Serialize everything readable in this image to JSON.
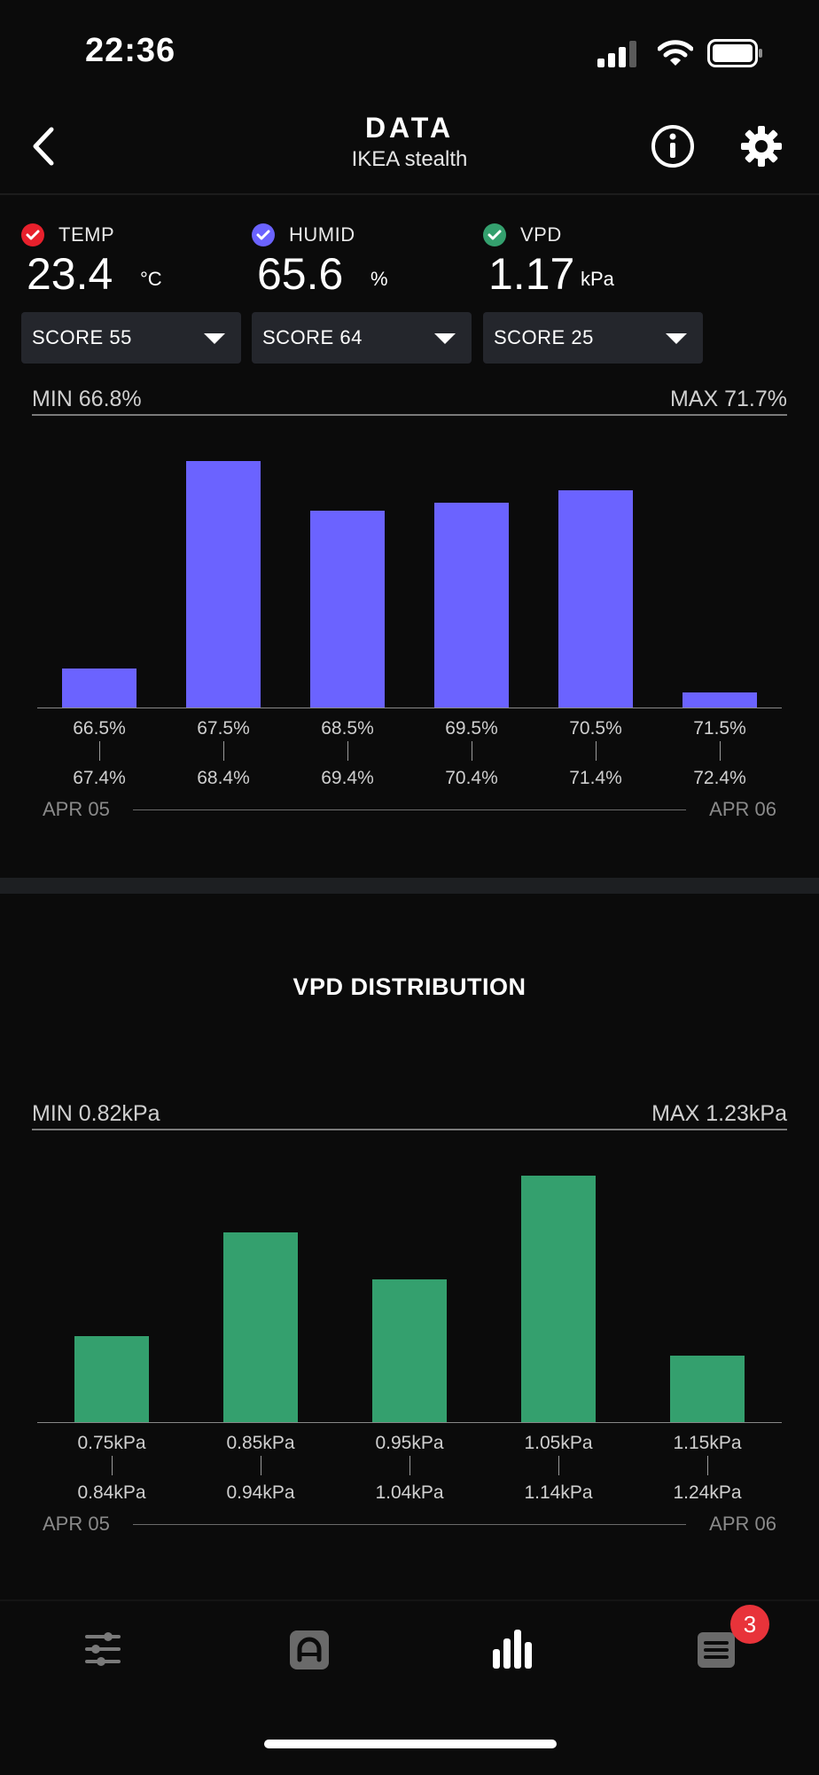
{
  "status_bar": {
    "time": "22:36"
  },
  "header": {
    "title": "DATA",
    "subtitle": "IKEA stealth"
  },
  "metrics": [
    {
      "label": "TEMP",
      "value": "23.4",
      "unit": "°C",
      "color": "#e8202c",
      "score": "SCORE 55"
    },
    {
      "label": "HUMID",
      "value": "65.6",
      "unit": "%",
      "color": "#6b63ff",
      "score": "SCORE 64"
    },
    {
      "label": "VPD",
      "value": "1.17",
      "unit": "kPa",
      "color": "#34a06e",
      "score": "SCORE 25"
    }
  ],
  "chart_data": [
    {
      "type": "bar",
      "title": "",
      "min_label": "MIN 66.8%",
      "max_label": "MAX 71.7%",
      "color": "#6b63ff",
      "categories": [
        "66.5%-67.4%",
        "67.5%-68.4%",
        "68.5%-69.4%",
        "69.5%-70.4%",
        "70.5%-71.4%",
        "71.5%-72.4%"
      ],
      "bins": [
        {
          "from": "66.5%",
          "to": "67.4%"
        },
        {
          "from": "67.5%",
          "to": "68.4%"
        },
        {
          "from": "68.5%",
          "to": "69.4%"
        },
        {
          "from": "69.5%",
          "to": "70.4%"
        },
        {
          "from": "70.5%",
          "to": "71.4%"
        },
        {
          "from": "71.5%",
          "to": "72.4%"
        }
      ],
      "values": [
        16,
        100,
        80,
        83,
        88,
        6
      ],
      "ylim": [
        0,
        100
      ],
      "date_start": "APR 05",
      "date_end": "APR 06"
    },
    {
      "type": "bar",
      "title": "VPD DISTRIBUTION",
      "min_label": "MIN 0.82kPa",
      "max_label": "MAX 1.23kPa",
      "color": "#34a06e",
      "categories": [
        "0.75kPa-0.84kPa",
        "0.85kPa-0.94kPa",
        "0.95kPa-1.04kPa",
        "1.05kPa-1.14kPa",
        "1.15kPa-1.24kPa"
      ],
      "bins": [
        {
          "from": "0.75kPa",
          "to": "0.84kPa"
        },
        {
          "from": "0.85kPa",
          "to": "0.94kPa"
        },
        {
          "from": "0.95kPa",
          "to": "1.04kPa"
        },
        {
          "from": "1.05kPa",
          "to": "1.14kPa"
        },
        {
          "from": "1.15kPa",
          "to": "1.24kPa"
        }
      ],
      "values": [
        35,
        77,
        58,
        100,
        27
      ],
      "ylim": [
        0,
        100
      ],
      "date_start": "APR 05",
      "date_end": "APR 06"
    }
  ],
  "tab_bar": {
    "tabs": [
      {
        "icon": "sliders-icon",
        "active": false
      },
      {
        "icon": "app-icon",
        "active": false
      },
      {
        "icon": "bar-chart-icon",
        "active": true
      },
      {
        "icon": "list-icon",
        "active": false
      }
    ],
    "badge": "3"
  }
}
